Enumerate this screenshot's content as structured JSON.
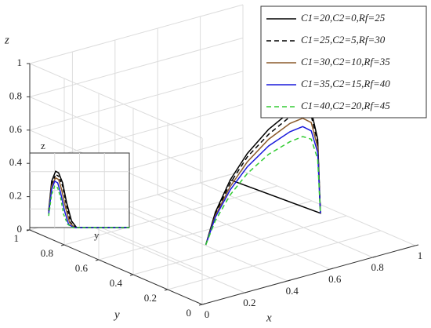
{
  "chart_data": [
    {
      "type": "line3d",
      "xlabel": "x",
      "ylabel": "y",
      "zlabel": "z",
      "xlim": [
        0,
        1
      ],
      "ylim": [
        0,
        1
      ],
      "zlim": [
        0,
        1
      ],
      "xticks": [
        0,
        0.2,
        0.4,
        0.6,
        0.8,
        1
      ],
      "yticks": [
        0,
        0.2,
        0.4,
        0.6,
        0.8,
        1
      ],
      "zticks": [
        0,
        0.2,
        0.4,
        0.6,
        0.8,
        1
      ],
      "grid": true,
      "legend": "upper right",
      "series": [
        {
          "name": "C1=20,C2=0,Rf=25",
          "color": "#000000",
          "dash": false,
          "x": [
            0.405,
            0.45,
            0.52,
            0.6,
            0.7,
            0.8,
            0.86,
            0.9,
            0.93,
            0.94,
            0.943,
            0.52
          ],
          "y": [
            0.48,
            0.48,
            0.48,
            0.48,
            0.48,
            0.48,
            0.48,
            0.48,
            0.48,
            0.48,
            0.48,
            0.48
          ],
          "z": [
            0,
            0.18,
            0.35,
            0.48,
            0.59,
            0.66,
            0.67,
            0.63,
            0.45,
            0.1,
            0,
            0.35
          ]
        },
        {
          "name": "C1=25,C2=5,Rf=30",
          "color": "#000000",
          "dash": true,
          "x": [
            0.405,
            0.45,
            0.52,
            0.6,
            0.7,
            0.8,
            0.86,
            0.9,
            0.93,
            0.94,
            0.943
          ],
          "y": [
            0.48,
            0.48,
            0.48,
            0.48,
            0.48,
            0.48,
            0.48,
            0.48,
            0.48,
            0.48,
            0.48
          ],
          "z": [
            0,
            0.17,
            0.33,
            0.46,
            0.56,
            0.63,
            0.64,
            0.6,
            0.43,
            0.1,
            0
          ]
        },
        {
          "name": "C1=30,C2=10,Rf=35",
          "color": "#8b5a2b",
          "dash": false,
          "x": [
            0.405,
            0.45,
            0.52,
            0.6,
            0.7,
            0.8,
            0.86,
            0.9,
            0.93,
            0.94,
            0.943
          ],
          "y": [
            0.48,
            0.48,
            0.48,
            0.48,
            0.48,
            0.48,
            0.48,
            0.48,
            0.48,
            0.48,
            0.48
          ],
          "z": [
            0,
            0.16,
            0.31,
            0.43,
            0.53,
            0.59,
            0.6,
            0.56,
            0.4,
            0.09,
            0
          ]
        },
        {
          "name": "C1=35,C2=15,Rf=40",
          "color": "#1a1adc",
          "dash": false,
          "x": [
            0.405,
            0.45,
            0.52,
            0.6,
            0.7,
            0.8,
            0.86,
            0.9,
            0.93,
            0.94,
            0.943
          ],
          "y": [
            0.48,
            0.48,
            0.48,
            0.48,
            0.48,
            0.48,
            0.48,
            0.48,
            0.48,
            0.48,
            0.48
          ],
          "z": [
            0,
            0.15,
            0.29,
            0.4,
            0.49,
            0.54,
            0.55,
            0.51,
            0.37,
            0.08,
            0
          ]
        },
        {
          "name": "C1=40,C2=20,Rf=45",
          "color": "#33cc33",
          "dash": true,
          "x": [
            0.405,
            0.45,
            0.52,
            0.6,
            0.7,
            0.8,
            0.86,
            0.9,
            0.93,
            0.94,
            0.943
          ],
          "y": [
            0.48,
            0.48,
            0.48,
            0.48,
            0.48,
            0.48,
            0.48,
            0.48,
            0.48,
            0.48,
            0.48
          ],
          "z": [
            0,
            0.13,
            0.26,
            0.36,
            0.44,
            0.48,
            0.49,
            0.46,
            0.33,
            0.07,
            0
          ]
        }
      ]
    },
    {
      "type": "line",
      "xlabel": "y",
      "ylabel": "z",
      "xlim": [
        0,
        1
      ],
      "ylim": [
        0,
        0.45
      ],
      "series": [
        {
          "name": "C1=20,C2=0,Rf=25",
          "color": "#000000",
          "dash": false,
          "x": [
            0.19,
            0.22,
            0.26,
            0.29,
            0.33,
            0.37,
            0.42,
            0.47,
            0.6,
            1
          ],
          "values": [
            0.1,
            0.28,
            0.34,
            0.33,
            0.27,
            0.15,
            0.04,
            0,
            0,
            0
          ]
        },
        {
          "name": "C1=25,C2=5,Rf=30",
          "color": "#000000",
          "dash": true,
          "x": [
            0.19,
            0.22,
            0.26,
            0.29,
            0.33,
            0.37,
            0.41,
            0.46,
            0.6,
            1
          ],
          "values": [
            0.1,
            0.26,
            0.32,
            0.31,
            0.25,
            0.13,
            0.03,
            0,
            0,
            0
          ]
        },
        {
          "name": "C1=30,C2=10,Rf=35",
          "color": "#8b5a2b",
          "dash": false,
          "x": [
            0.19,
            0.22,
            0.26,
            0.29,
            0.32,
            0.36,
            0.4,
            0.45,
            0.6,
            1
          ],
          "values": [
            0.09,
            0.25,
            0.3,
            0.29,
            0.23,
            0.12,
            0.03,
            0,
            0,
            0
          ]
        },
        {
          "name": "C1=35,C2=15,Rf=40",
          "color": "#1a1adc",
          "dash": false,
          "x": [
            0.19,
            0.22,
            0.25,
            0.28,
            0.31,
            0.35,
            0.39,
            0.44,
            0.6,
            1
          ],
          "values": [
            0.08,
            0.23,
            0.28,
            0.27,
            0.21,
            0.1,
            0.02,
            0,
            0,
            0
          ]
        },
        {
          "name": "C1=40,C2=20,Rf=45",
          "color": "#33cc33",
          "dash": true,
          "x": [
            0.19,
            0.22,
            0.25,
            0.28,
            0.31,
            0.34,
            0.38,
            0.43,
            0.6,
            1
          ],
          "values": [
            0.07,
            0.2,
            0.25,
            0.24,
            0.18,
            0.08,
            0.02,
            0,
            0,
            0
          ]
        }
      ]
    }
  ]
}
